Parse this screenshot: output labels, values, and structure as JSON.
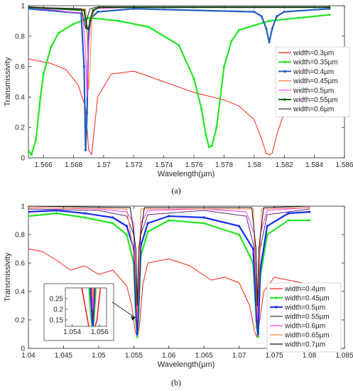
{
  "chart_data": [
    {
      "type": "line",
      "caption": "(a)",
      "xlabel": "Wavelength(µm)",
      "ylabel": "Transmissivity",
      "xlim": [
        1.565,
        1.586
      ],
      "ylim": [
        0,
        1
      ],
      "xticks": [
        "1.566",
        "1.568",
        "1.57",
        "1.572",
        "1.574",
        "1.576",
        "1.578",
        "1.58",
        "1.582",
        "1.584",
        "1.586"
      ],
      "yticks": [
        "0",
        "0.2",
        "0.4",
        "0.6",
        "0.8",
        "1"
      ],
      "legend_position": "right",
      "series": [
        {
          "name": "width=0.3µm",
          "color": "#ff2020",
          "marker": "none",
          "x": [
            1.565,
            1.5665,
            1.5675,
            1.5683,
            1.5688,
            1.569,
            1.5692,
            1.5696,
            1.5705,
            1.572,
            1.574,
            1.576,
            1.578,
            1.579,
            1.58,
            1.5805,
            1.5808,
            1.581,
            1.5812,
            1.5815,
            1.582,
            1.5835,
            1.585
          ],
          "y": [
            0.65,
            0.62,
            0.58,
            0.48,
            0.33,
            0.05,
            0.02,
            0.4,
            0.55,
            0.57,
            0.5,
            0.43,
            0.38,
            0.34,
            0.25,
            0.12,
            0.03,
            0.02,
            0.03,
            0.15,
            0.3,
            0.45,
            0.5
          ]
        },
        {
          "name": "width=0.35µm",
          "color": "#22e622",
          "marker": "dot",
          "x": [
            1.565,
            1.5652,
            1.5655,
            1.5658,
            1.566,
            1.5665,
            1.567,
            1.568,
            1.569,
            1.571,
            1.573,
            1.575,
            1.576,
            1.5765,
            1.5768,
            1.577,
            1.5772,
            1.5775,
            1.578,
            1.5785,
            1.579,
            1.581,
            1.583,
            1.585
          ],
          "y": [
            0.05,
            0.02,
            0.12,
            0.4,
            0.55,
            0.73,
            0.82,
            0.88,
            0.92,
            0.9,
            0.86,
            0.74,
            0.52,
            0.32,
            0.15,
            0.07,
            0.08,
            0.2,
            0.6,
            0.77,
            0.84,
            0.9,
            0.92,
            0.94
          ]
        },
        {
          "name": "width=0.4µm",
          "color": "#2060c0",
          "marker": "dot",
          "x": [
            1.565,
            1.5685,
            1.5687,
            1.5688,
            1.5689,
            1.569,
            1.5692,
            1.5696,
            1.572,
            1.58,
            1.5805,
            1.5808,
            1.581,
            1.5812,
            1.5815,
            1.582,
            1.585
          ],
          "y": [
            0.98,
            0.95,
            0.6,
            0.05,
            0.3,
            0.85,
            0.92,
            0.96,
            0.98,
            0.96,
            0.93,
            0.85,
            0.76,
            0.85,
            0.93,
            0.96,
            0.98
          ]
        },
        {
          "name": "width=0.45µm",
          "color": "#ff8040",
          "marker": "none",
          "x": [
            1.565,
            1.5688,
            1.5689,
            1.569,
            1.5691,
            1.5692,
            1.5694,
            1.5698,
            1.572,
            1.585
          ],
          "y": [
            0.99,
            0.98,
            0.8,
            0.45,
            0.6,
            0.9,
            0.97,
            0.99,
            0.99,
            0.99
          ]
        },
        {
          "name": "width=0.5µm",
          "color": "#ff33ff",
          "marker": "none",
          "x": [
            1.565,
            1.5686,
            1.5688,
            1.5689,
            1.569,
            1.5692,
            1.5695,
            1.572,
            1.585
          ],
          "y": [
            0.99,
            0.95,
            0.7,
            0.4,
            0.75,
            0.95,
            0.98,
            0.99,
            0.99
          ]
        },
        {
          "name": "width=0.55µm",
          "color": "#106010",
          "marker": "dot",
          "x": [
            1.565,
            1.5687,
            1.5689,
            1.569,
            1.5691,
            1.5693,
            1.5697,
            1.572,
            1.585
          ],
          "y": [
            0.99,
            0.97,
            0.85,
            0.85,
            0.9,
            0.97,
            0.99,
            0.99,
            0.99
          ]
        },
        {
          "name": "width=0.6µm",
          "color": "#222222",
          "marker": "none",
          "x": [
            1.565,
            1.5685,
            1.5687,
            1.5688,
            1.5689,
            1.5691,
            1.5695,
            1.572,
            1.585
          ],
          "y": [
            0.99,
            0.98,
            0.9,
            0.85,
            0.92,
            0.98,
            0.99,
            0.99,
            0.99
          ]
        }
      ]
    },
    {
      "type": "line",
      "caption": "(b)",
      "xlabel": "Wavelength(µm)",
      "ylabel": "Transmissivity",
      "xlim": [
        1.04,
        1.085
      ],
      "ylim": [
        0,
        1
      ],
      "xticks": [
        "1.04",
        "1.045",
        "1.05",
        "1.055",
        "1.06",
        "1.065",
        "1.07",
        "1.075",
        "1.08",
        "1.085"
      ],
      "yticks": [
        "0",
        "0.2",
        "0.4",
        "0.6",
        "0.8",
        "1"
      ],
      "legend_position": "right",
      "inset": {
        "xlim": [
          1.0535,
          1.0565
        ],
        "ylim": [
          0.12,
          0.3
        ],
        "xticks": [
          "1.054",
          "1.056"
        ],
        "yticks": [
          "0.15",
          "0.2",
          "0.25"
        ]
      },
      "series": [
        {
          "name": "width=0.4µm",
          "color": "#ff2020",
          "marker": "none",
          "x": [
            1.04,
            1.042,
            1.044,
            1.046,
            1.048,
            1.05,
            1.052,
            1.054,
            1.0547,
            1.0552,
            1.0555,
            1.0558,
            1.0563,
            1.057,
            1.06,
            1.063,
            1.066,
            1.068,
            1.07,
            1.0715,
            1.0722,
            1.0725,
            1.0728,
            1.0735,
            1.075,
            1.078,
            1.08
          ],
          "y": [
            0.7,
            0.68,
            0.62,
            0.55,
            0.58,
            0.52,
            0.55,
            0.44,
            0.3,
            0.12,
            0.08,
            0.15,
            0.45,
            0.6,
            0.63,
            0.58,
            0.48,
            0.5,
            0.46,
            0.3,
            0.12,
            0.08,
            0.15,
            0.4,
            0.5,
            0.47,
            0.45
          ]
        },
        {
          "name": "width=0.45µm",
          "color": "#22e622",
          "marker": "dot",
          "x": [
            1.04,
            1.044,
            1.048,
            1.052,
            1.054,
            1.055,
            1.0553,
            1.0555,
            1.0557,
            1.056,
            1.057,
            1.06,
            1.065,
            1.07,
            1.072,
            1.0725,
            1.0727,
            1.073,
            1.074,
            1.077,
            1.08
          ],
          "y": [
            0.93,
            0.95,
            0.92,
            0.88,
            0.8,
            0.6,
            0.2,
            0.08,
            0.25,
            0.65,
            0.82,
            0.9,
            0.88,
            0.8,
            0.6,
            0.15,
            0.08,
            0.5,
            0.8,
            0.9,
            0.9
          ]
        },
        {
          "name": "width=0.5µm",
          "color": "#1a2ef0",
          "marker": "dot",
          "x": [
            1.04,
            1.044,
            1.048,
            1.052,
            1.054,
            1.055,
            1.0553,
            1.0555,
            1.0557,
            1.056,
            1.057,
            1.06,
            1.065,
            1.07,
            1.072,
            1.0725,
            1.0727,
            1.073,
            1.074,
            1.077,
            1.08
          ],
          "y": [
            0.96,
            0.97,
            0.95,
            0.92,
            0.86,
            0.7,
            0.3,
            0.1,
            0.35,
            0.72,
            0.88,
            0.93,
            0.92,
            0.86,
            0.7,
            0.2,
            0.1,
            0.55,
            0.86,
            0.95,
            0.96
          ]
        },
        {
          "name": "width=0.55µm",
          "color": "#5a2e6e",
          "marker": "none",
          "x": [
            1.04,
            1.05,
            1.054,
            1.055,
            1.0553,
            1.0555,
            1.0557,
            1.056,
            1.057,
            1.065,
            1.071,
            1.0722,
            1.0726,
            1.073,
            1.074,
            1.08
          ],
          "y": [
            0.98,
            0.97,
            0.93,
            0.8,
            0.4,
            0.15,
            0.4,
            0.8,
            0.94,
            0.97,
            0.93,
            0.7,
            0.15,
            0.7,
            0.94,
            0.98
          ]
        },
        {
          "name": "width=0.6µm",
          "color": "#ff33ff",
          "marker": "none",
          "x": [
            1.04,
            1.05,
            1.054,
            1.055,
            1.0553,
            1.0555,
            1.0557,
            1.056,
            1.057,
            1.065,
            1.071,
            1.0722,
            1.0726,
            1.073,
            1.074,
            1.08
          ],
          "y": [
            0.99,
            0.98,
            0.96,
            0.88,
            0.5,
            0.2,
            0.5,
            0.88,
            0.97,
            0.98,
            0.96,
            0.8,
            0.2,
            0.8,
            0.97,
            0.99
          ]
        },
        {
          "name": "width=0.65µm",
          "color": "#ff8040",
          "marker": "none",
          "x": [
            1.04,
            1.054,
            1.0552,
            1.0555,
            1.0558,
            1.056,
            1.072,
            1.0723,
            1.0726,
            1.0729,
            1.0732,
            1.08
          ],
          "y": [
            0.99,
            0.98,
            0.6,
            0.25,
            0.6,
            0.98,
            0.98,
            0.6,
            0.25,
            0.6,
            0.98,
            0.99
          ]
        },
        {
          "name": "width=0.7µm",
          "color": "#111111",
          "marker": "none",
          "x": [
            1.04,
            1.0545,
            1.0553,
            1.0555,
            1.0557,
            1.0565,
            1.0718,
            1.0724,
            1.0726,
            1.0728,
            1.0735,
            1.08
          ],
          "y": [
            1.0,
            0.99,
            0.7,
            0.3,
            0.7,
            0.99,
            0.99,
            0.7,
            0.3,
            0.7,
            0.99,
            1.0
          ]
        }
      ]
    }
  ]
}
